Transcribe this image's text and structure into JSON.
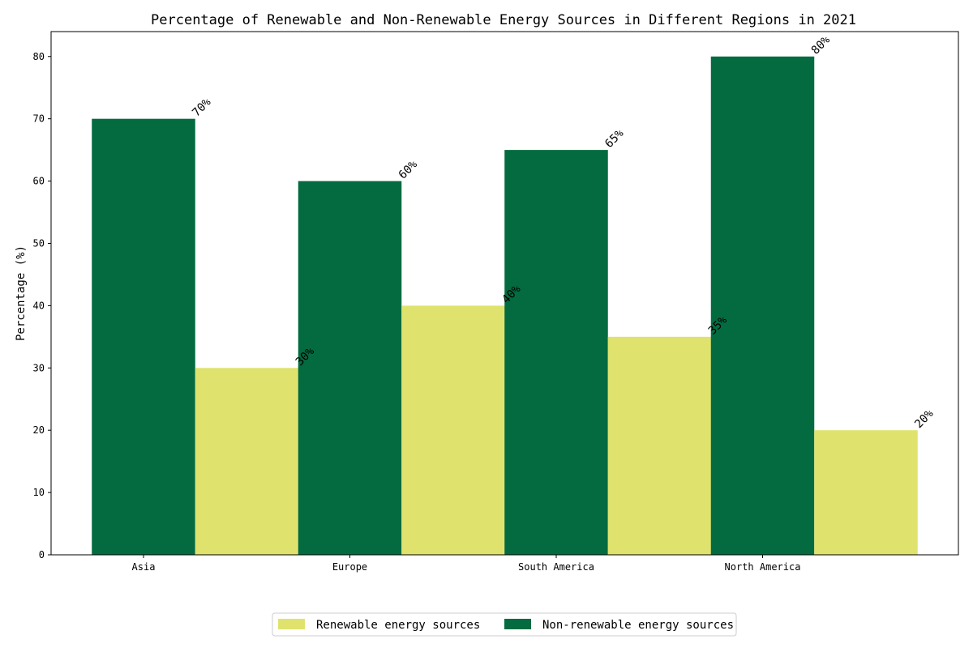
{
  "chart_data": {
    "type": "bar",
    "title": "Percentage of Renewable and Non-Renewable Energy Sources in Different Regions in 2021",
    "xlabel": "",
    "ylabel": "Percentage (%)",
    "categories": [
      "Asia",
      "Europe",
      "South America",
      "North America"
    ],
    "series": [
      {
        "name": "Renewable energy sources",
        "values": [
          30,
          40,
          35,
          20
        ],
        "color": "#dfe36e"
      },
      {
        "name": "Non-renewable energy sources",
        "values": [
          70,
          60,
          65,
          80
        ],
        "color": "#046b40"
      }
    ],
    "value_labels": {
      "Renewable energy sources": [
        "30%",
        "40%",
        "35%",
        "20%"
      ],
      "Non-renewable energy sources": [
        "70%",
        "60%",
        "65%",
        "80%"
      ]
    },
    "ylim": [
      0,
      84
    ],
    "yticks": [
      0,
      10,
      20,
      30,
      40,
      50,
      60,
      70,
      80
    ],
    "grid": false,
    "legend_position": "bottom-center"
  }
}
